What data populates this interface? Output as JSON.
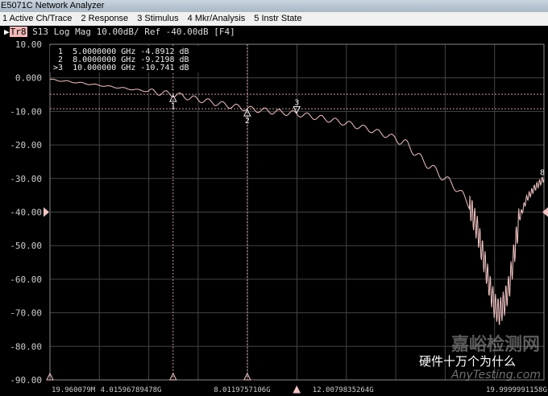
{
  "window": {
    "title": "E5071C Network Analyzer"
  },
  "menu": [
    "1 Active Ch/Trace",
    "2 Response",
    "3 Stimulus",
    "4 Mkr/Analysis",
    "5 Instr State"
  ],
  "trace": {
    "badge": "Tr8",
    "info": " S13 Log Mag 10.00dB/ Ref -40.00dB [F4]"
  },
  "markers": [
    {
      "label": "1",
      "freq": "5.0000000 GHz",
      "value": "-4.8912 dB",
      "f": 5.0,
      "db": -4.8912
    },
    {
      "label": "2",
      "freq": "8.0000000 GHz",
      "value": "-9.2198 dB",
      "f": 8.0,
      "db": -9.2198
    },
    {
      "label": ">3",
      "freq": "10.000000 GHz",
      "value": "-10.741 dB",
      "f": 10.0,
      "db": -10.741
    }
  ],
  "watermark": {
    "text": "硬件十万个为什么",
    "site_cn": "嘉峪检测网",
    "site": "AnyTesting.com"
  },
  "chart_data": {
    "type": "line",
    "yticks": [
      "10.00",
      "0.000",
      "-10.00",
      "-20.00",
      "-30.00",
      "-40.00",
      "-50.00",
      "-60.00",
      "-70.00",
      "-80.00",
      "-90.00"
    ],
    "ylim": [
      -90,
      10
    ],
    "xlim": [
      0.019960079,
      19.9999991158
    ],
    "xticks": [
      "19.960079M",
      "4.01596789478G",
      "8.0119757106G",
      "12.0079835264G",
      "19.9999991158G"
    ],
    "grid": true,
    "trace_color": "#f2c4c4",
    "reference_level": -40,
    "end_marker_label": "8",
    "series": [
      {
        "x": [
          0.02,
          1,
          2,
          3,
          4,
          5,
          6,
          7,
          8,
          9,
          10,
          11,
          12,
          13,
          14,
          14.5,
          15,
          15.5,
          16,
          16.5,
          17,
          17.3,
          17.6,
          17.8,
          18,
          18.2,
          18.4,
          18.6,
          18.8,
          19,
          19.3,
          19.6,
          20
        ],
        "y": [
          -0.5,
          -1.3,
          -2.2,
          -3.1,
          -4,
          -4.9,
          -6.4,
          -7.9,
          -9.2,
          -10,
          -10.7,
          -12,
          -13.5,
          -15.5,
          -18,
          -20,
          -24,
          -27,
          -30,
          -33,
          -38,
          -45,
          -55,
          -62,
          -68,
          -70,
          -67,
          -62,
          -52,
          -42,
          -36,
          -33,
          -30
        ]
      }
    ]
  }
}
